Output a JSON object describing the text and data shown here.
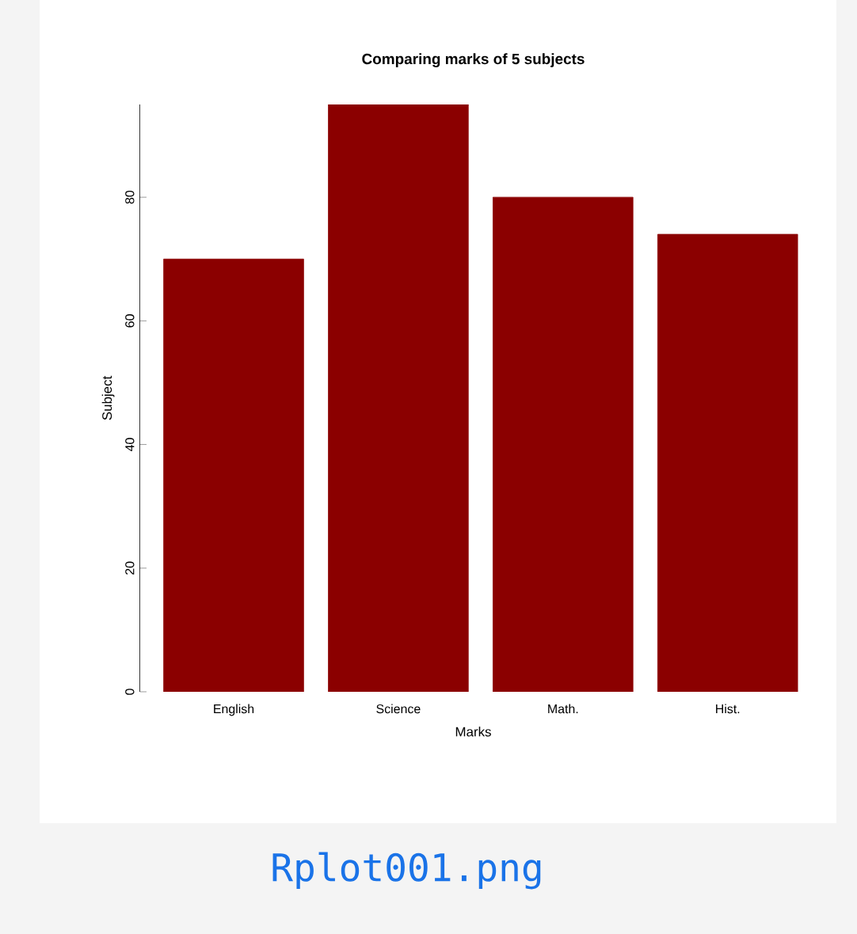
{
  "chart_data": {
    "type": "bar",
    "title": "Comparing marks of 5 subjects",
    "xlabel": "Marks",
    "ylabel": "Subject",
    "categories": [
      "English",
      "Science",
      "Math.",
      "Hist."
    ],
    "values": [
      70,
      95,
      80,
      74
    ],
    "color": "#8b0000",
    "ylim": [
      0,
      95
    ],
    "yticks": [
      0,
      20,
      40,
      60,
      80
    ],
    "annotations": [
      "Rplot001.png"
    ]
  }
}
